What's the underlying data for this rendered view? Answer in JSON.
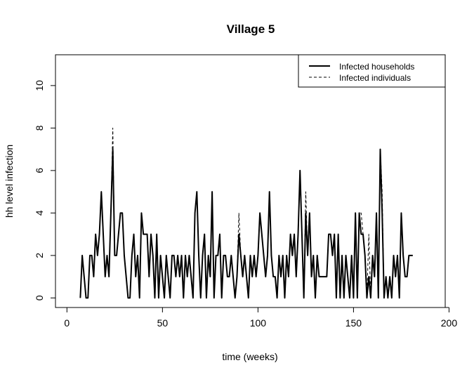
{
  "chart_data": {
    "type": "line",
    "title": "Village  5",
    "xlabel": "time (weeks)",
    "ylabel": "hh level infection",
    "xlim": [
      -6,
      198
    ],
    "ylim": [
      -0.45,
      11.45
    ],
    "xticks": [
      0,
      50,
      100,
      150,
      200
    ],
    "yticks": [
      0,
      2,
      4,
      6,
      8,
      10
    ],
    "grid": false,
    "legend_position": "top-right",
    "series": [
      {
        "name": "Infected households",
        "style": "solid",
        "color": "#000000",
        "x_start": 7,
        "values": [
          0,
          2,
          1,
          0,
          0,
          2,
          2,
          1,
          3,
          2,
          3,
          5,
          3,
          1,
          2,
          1,
          4,
          7,
          2,
          2,
          3,
          4,
          4,
          2,
          1,
          0,
          0,
          2,
          3,
          1,
          2,
          0,
          4,
          3,
          3,
          3,
          1,
          3,
          2,
          0,
          3,
          0,
          2,
          1,
          0,
          2,
          1,
          0,
          2,
          2,
          1,
          2,
          1,
          2,
          0,
          2,
          1,
          2,
          1,
          0,
          4,
          5,
          2,
          0,
          2,
          3,
          0,
          2,
          1,
          5,
          0,
          2,
          2,
          3,
          0,
          2,
          2,
          1,
          1,
          2,
          1,
          0,
          1,
          3,
          2,
          1,
          2,
          1,
          0,
          2,
          1,
          2,
          1,
          2,
          4,
          3,
          2,
          1,
          2,
          5,
          2,
          1,
          1,
          0,
          2,
          1,
          2,
          0,
          2,
          1,
          3,
          2,
          3,
          1,
          3,
          6,
          3,
          0,
          4,
          2,
          4,
          1,
          2,
          0,
          2,
          1,
          1,
          1,
          1,
          1,
          3,
          3,
          2,
          3,
          0,
          3,
          0,
          2,
          0,
          2,
          1,
          0,
          2,
          0,
          4,
          0,
          4,
          3,
          3,
          2,
          0,
          1,
          0,
          2,
          1,
          4,
          0,
          7,
          4,
          0,
          1,
          0,
          1,
          0,
          2,
          1,
          2,
          0,
          4,
          2,
          1,
          1,
          2,
          2,
          2
        ]
      },
      {
        "name": "Infected individuals",
        "style": "dashed",
        "color": "#000000",
        "x_start": 7,
        "values": [
          0,
          2,
          1,
          0,
          0,
          2,
          2,
          1,
          3,
          2,
          3,
          5,
          3,
          1,
          2,
          1,
          4,
          8,
          2,
          2,
          3,
          4,
          4,
          2,
          1,
          0,
          0,
          2,
          3,
          1,
          2,
          0,
          4,
          3,
          3,
          3,
          1,
          3,
          2,
          0,
          3,
          0,
          2,
          1,
          0,
          2,
          1,
          0,
          2,
          2,
          1,
          2,
          1,
          2,
          0,
          2,
          1,
          2,
          1,
          0,
          4,
          5,
          2,
          0,
          2,
          3,
          0,
          2,
          1,
          5,
          0,
          2,
          2,
          3,
          0,
          2,
          2,
          1,
          1,
          2,
          1,
          0,
          1,
          4,
          2,
          1,
          2,
          1,
          0,
          2,
          1,
          2,
          1,
          2,
          4,
          3,
          2,
          1,
          2,
          5,
          2,
          1,
          1,
          0,
          2,
          1,
          2,
          0,
          2,
          1,
          3,
          2,
          3,
          1,
          3,
          6,
          3,
          0,
          5,
          2,
          4,
          1,
          2,
          0,
          2,
          1,
          1,
          1,
          1,
          1,
          3,
          3,
          2,
          3,
          0,
          3,
          0,
          2,
          0,
          2,
          1,
          0,
          2,
          0,
          4,
          0,
          4,
          4,
          3,
          2,
          0,
          3,
          0,
          2,
          1,
          4,
          0,
          7,
          5,
          0,
          1,
          0,
          1,
          0,
          2,
          1,
          2,
          0,
          4,
          2,
          1,
          1,
          2,
          2,
          2
        ]
      }
    ]
  }
}
